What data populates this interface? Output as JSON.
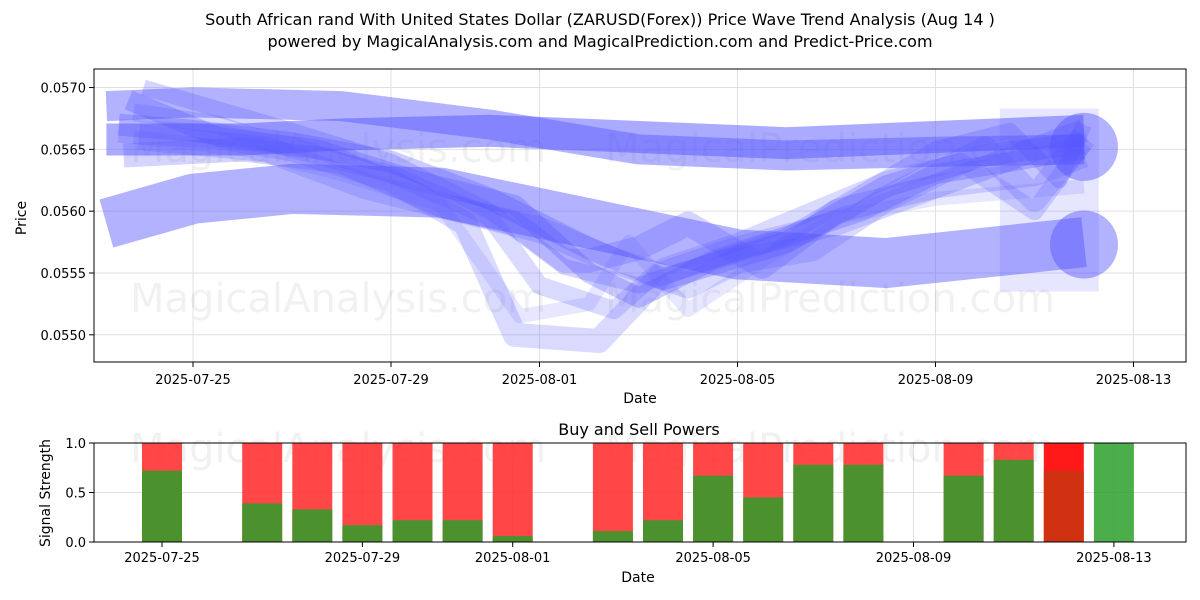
{
  "colors": {
    "buy": "#2ca02c",
    "sell": "#ff3333",
    "band": "#5555ff",
    "grid": "#e0e0e0"
  },
  "chart_data": [
    {
      "type": "line",
      "title_line1": "South African rand With United States Dollar (ZARUSD(Forex)) Price Wave Trend Analysis (Aug 14 )",
      "title_line2": "powered by MagicalAnalysis.com and MagicalPrediction.com and Predict-Price.com",
      "xlabel": "Date",
      "ylabel": "Price",
      "x_ticks": [
        "2025-07-25",
        "2025-07-29",
        "2025-08-01",
        "2025-08-05",
        "2025-08-09",
        "2025-08-13"
      ],
      "y_ticks": [
        "0.0550",
        "0.0555",
        "0.0560",
        "0.0565",
        "0.0570"
      ],
      "ylim": [
        0.05478,
        0.05715
      ],
      "xlim_days": [
        -1.95,
        19.05
      ],
      "watermarks": [
        "MagicalAnalysis.com",
        "MagicalPrediction.com",
        "MagicalAnalysis.com",
        "MagicalPrediction.com"
      ],
      "series": [
        {
          "name": "upper-wave",
          "x": [
            -1.75,
            0,
            3,
            6,
            9,
            12,
            15,
            18
          ],
          "y": [
            0.05685,
            0.05688,
            0.05685,
            0.0567,
            0.0565,
            0.05645,
            0.05648,
            0.0565
          ],
          "width": 30,
          "opacity": 0.45
        },
        {
          "name": "central-wave",
          "x": [
            -1.75,
            1,
            3,
            6,
            9,
            12,
            15,
            18
          ],
          "y": [
            0.05658,
            0.05658,
            0.05662,
            0.05665,
            0.0566,
            0.05655,
            0.0566,
            0.05665
          ],
          "width": 32,
          "opacity": 0.5
        },
        {
          "name": "rising-lower-wave",
          "x": [
            -1.75,
            0,
            2,
            5,
            8,
            11,
            14,
            18
          ],
          "y": [
            0.0559,
            0.0561,
            0.05618,
            0.05615,
            0.0559,
            0.05565,
            0.05558,
            0.05575
          ],
          "width": 50,
          "opacity": 0.45
        },
        {
          "name": "dip-wave-1",
          "x": [
            -1.5,
            0,
            2,
            4,
            6,
            8,
            9.5,
            12,
            14,
            16,
            18
          ],
          "y": [
            0.0567,
            0.05665,
            0.05655,
            0.0564,
            0.0561,
            0.0557,
            0.05545,
            0.05575,
            0.0562,
            0.05645,
            0.05655
          ],
          "width": 22,
          "opacity": 0.3
        },
        {
          "name": "dip-wave-2",
          "x": [
            -1.3,
            0.5,
            2.5,
            4.5,
            6.5,
            8,
            9,
            10.5,
            12,
            13.5,
            15,
            16.5,
            18
          ],
          "y": [
            0.0569,
            0.0566,
            0.0565,
            0.05625,
            0.05605,
            0.0555,
            0.0553,
            0.0556,
            0.0558,
            0.056,
            0.0563,
            0.0564,
            0.0565
          ],
          "width": 20,
          "opacity": 0.3
        },
        {
          "name": "dip-wave-3",
          "x": [
            -1.4,
            1,
            3,
            5,
            6.5,
            7.5,
            8,
            9,
            10,
            11.5,
            13,
            15,
            17,
            18
          ],
          "y": [
            0.05645,
            0.0565,
            0.0564,
            0.05605,
            0.0559,
            0.0556,
            0.0556,
            0.0557,
            0.0559,
            0.05555,
            0.056,
            0.0562,
            0.0565,
            0.05665
          ],
          "width": 24,
          "opacity": 0.25
        },
        {
          "name": "dip-wave-4",
          "x": [
            -1.2,
            0.5,
            2,
            4,
            6,
            7,
            8.5,
            9.5,
            11,
            12.5,
            14,
            15.5,
            17,
            18
          ],
          "y": [
            0.0568,
            0.0567,
            0.0565,
            0.0563,
            0.05595,
            0.0554,
            0.0552,
            0.05555,
            0.05575,
            0.056,
            0.05625,
            0.0564,
            0.056,
            0.05655
          ],
          "width": 18,
          "opacity": 0.22
        },
        {
          "name": "dip-wave-5",
          "x": [
            -1.1,
            1.5,
            3.5,
            5.5,
            7,
            8.5,
            10,
            11,
            12.5,
            14,
            16,
            17,
            18
          ],
          "y": [
            0.0566,
            0.0565,
            0.0562,
            0.056,
            0.05585,
            0.0556,
            0.0554,
            0.0556,
            0.0557,
            0.0561,
            0.0565,
            0.0561,
            0.0566
          ],
          "width": 26,
          "opacity": 0.22
        },
        {
          "name": "dip-wave-6",
          "x": [
            -1.0,
            2,
            4,
            6,
            7.5,
            9,
            10.5,
            12,
            13.5,
            15,
            16.5,
            17.5,
            18
          ],
          "y": [
            0.057,
            0.05665,
            0.0564,
            0.056,
            0.05555,
            0.0554,
            0.0556,
            0.0558,
            0.05615,
            0.0565,
            0.05665,
            0.05625,
            0.0567
          ],
          "width": 16,
          "opacity": 0.25
        },
        {
          "name": "deep-dip-wave",
          "x": [
            -1.5,
            0.5,
            2,
            4,
            5.5,
            6.5,
            8.2,
            9.5,
            11,
            13,
            15,
            17,
            18
          ],
          "y": [
            0.05665,
            0.0566,
            0.0565,
            0.05625,
            0.0559,
            0.055,
            0.05495,
            0.0555,
            0.0557,
            0.0559,
            0.0562,
            0.0563,
            0.05645
          ],
          "width": 24,
          "opacity": 0.22
        },
        {
          "name": "light-dip-wave",
          "x": [
            -1.2,
            1,
            3,
            5,
            6.6,
            8,
            8.8,
            10,
            11.5,
            13,
            15,
            18
          ],
          "y": [
            0.0566,
            0.0565,
            0.0563,
            0.05605,
            0.05515,
            0.05525,
            0.05575,
            0.0552,
            0.0556,
            0.05595,
            0.0561,
            0.0562
          ],
          "width": 14,
          "opacity": 0.14
        }
      ],
      "end_blobs": [
        {
          "x": 18,
          "y": 0.05652,
          "r": 34
        },
        {
          "x": 18,
          "y": 0.05573,
          "r": 34
        }
      ],
      "ghost_boxes": [
        {
          "x0": 16.3,
          "x1": 18.3,
          "y0": 0.05535,
          "y1": 0.05683
        }
      ]
    },
    {
      "type": "bar",
      "title": "Buy and Sell Powers",
      "xlabel": "Date",
      "ylabel": "Signal Strength",
      "x_ticks": [
        "2025-07-25",
        "2025-07-29",
        "2025-08-01",
        "2025-08-05",
        "2025-08-09",
        "2025-08-13"
      ],
      "y_ticks": [
        "0.0",
        "0.5",
        "1.0"
      ],
      "ylim": [
        0,
        1
      ],
      "buy": [
        0.72,
        null,
        0.39,
        0.33,
        0.17,
        0.22,
        0.22,
        0.06,
        null,
        0.11,
        0.22,
        0.67,
        0.45,
        0.78,
        0.78,
        null,
        0.67,
        0.83,
        0.72,
        1.0
      ],
      "sell": [
        0.28,
        null,
        0.61,
        0.67,
        0.83,
        0.78,
        0.78,
        0.94,
        null,
        0.89,
        0.78,
        0.33,
        0.55,
        0.22,
        0.22,
        null,
        0.33,
        0.17,
        0.28,
        0.0
      ],
      "highlight_index": 18
    }
  ]
}
